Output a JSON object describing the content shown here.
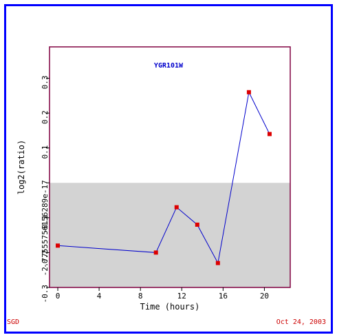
{
  "footer": {
    "left": "SGD",
    "right": "Oct 24, 2003"
  },
  "colors": {
    "frame": "#0000ff",
    "plot_border": "#800040",
    "line": "#0000cc",
    "marker": "#dd0000",
    "shaded_band": "#d3d3d3",
    "title": "#0000cc",
    "footer_text": "#cc0000"
  },
  "chart_data": {
    "type": "line",
    "title": "YGR101W",
    "xlabel": "Time (hours)",
    "ylabel": "log2(ratio)",
    "xlim": [
      -0.8,
      22.5
    ],
    "ylim": [
      -0.3,
      0.39
    ],
    "x_ticks": [
      0,
      4,
      8,
      12,
      16,
      20
    ],
    "x_tick_labels": [
      "0",
      "4",
      "8",
      "12",
      "16",
      "20"
    ],
    "y_ticks": [
      -0.3,
      -0.2,
      -0.1,
      0.0,
      0.1,
      0.2,
      0.3
    ],
    "y_tick_labels": [
      "-0.3",
      "-0.2",
      "-0.1",
      "-2.77555756156289e-17",
      "0.1",
      "0.2",
      "0.3"
    ],
    "shaded_region": {
      "y_from": -0.3,
      "y_to": 0.0
    },
    "grid": false,
    "series": [
      {
        "x": [
          0,
          9.5,
          11.5,
          13.5,
          15.5,
          18.5,
          20.5
        ],
        "y": [
          -0.18,
          -0.2,
          -0.07,
          -0.12,
          -0.23,
          0.26,
          0.14
        ]
      }
    ]
  }
}
